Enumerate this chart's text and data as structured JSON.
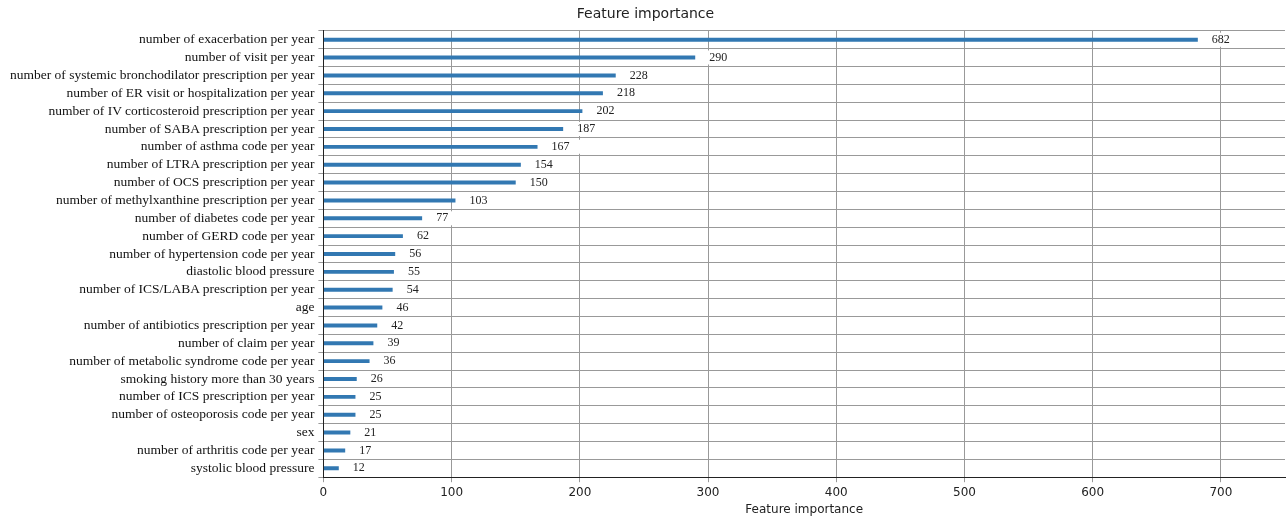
{
  "chart_data": {
    "type": "bar",
    "orientation": "horizontal",
    "title": "Feature importance",
    "xlabel": "Feature importance",
    "categories": [
      "number of exacerbation per year",
      "number of visit per year",
      "number of systemic bronchodilator prescription per year",
      "number of ER visit or hospitalization per year",
      "number of IV corticosteroid prescription per year",
      "number of SABA prescription per year",
      "number of asthma code per year",
      "number of LTRA prescription per year",
      "number of OCS prescription per year",
      "number of methylxanthine prescription per year",
      "number of diabetes code per year",
      "number of GERD code per year",
      "number of hypertension code per year",
      "diastolic blood pressure",
      "number of ICS/LABA prescription per year",
      "age",
      "number of antibiotics prescription per year",
      "number of claim per year",
      "number of metabolic syndrome code per year",
      "smoking history more than 30 years",
      "number of ICS prescription per year",
      "number of osteoporosis code per year",
      "sex",
      "number of arthritis code per year",
      "systolic blood pressure"
    ],
    "values": [
      682,
      290,
      228,
      218,
      202,
      187,
      167,
      154,
      150,
      103,
      77,
      62,
      56,
      55,
      54,
      46,
      42,
      39,
      36,
      26,
      25,
      25,
      21,
      17,
      12
    ],
    "color": "#3278b2",
    "data_labels": true,
    "grid": true,
    "legend": false,
    "xlim": [
      0,
      750
    ],
    "xticks": [
      0,
      100,
      200,
      300,
      400,
      500,
      600,
      700
    ]
  }
}
